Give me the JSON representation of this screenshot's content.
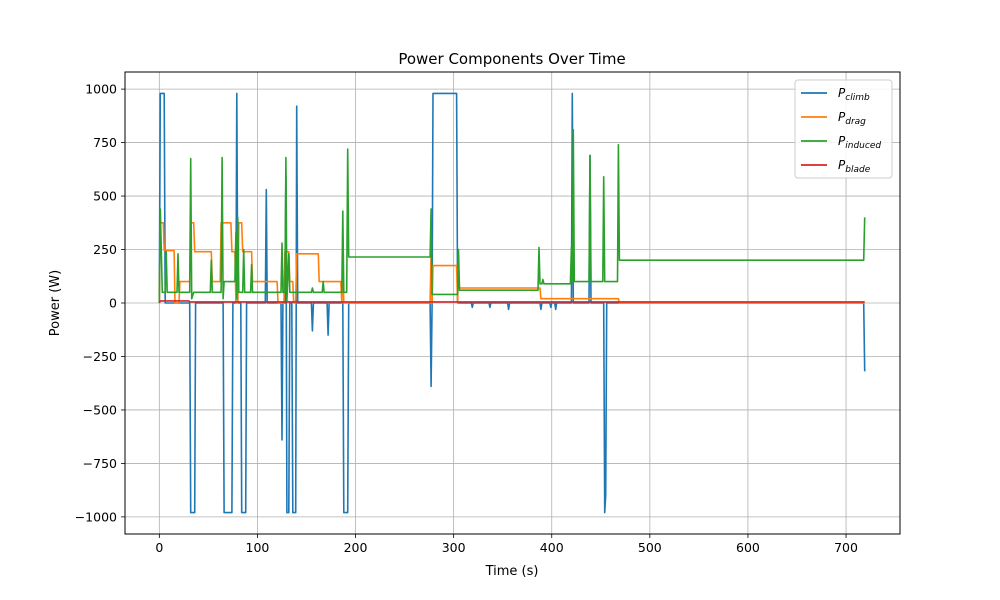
{
  "chart_data": {
    "type": "line",
    "title": "Power Components Over Time",
    "xlabel": "Time (s)",
    "ylabel": "Power (W)",
    "xlim": [
      -35,
      755
    ],
    "ylim": [
      -1080,
      1080
    ],
    "xticks": [
      0,
      100,
      200,
      300,
      400,
      500,
      600,
      700
    ],
    "yticks": [
      -1000,
      -750,
      -500,
      -250,
      0,
      250,
      500,
      750,
      1000
    ],
    "grid": true,
    "legend_position": "upper-right",
    "series": [
      {
        "name": "P_climb",
        "legend_main": "P",
        "legend_sub": "climb",
        "color": "#1f77b4",
        "points": [
          [
            0,
            0
          ],
          [
            1,
            980
          ],
          [
            3,
            980
          ],
          [
            5,
            980
          ],
          [
            6,
            0
          ],
          [
            31,
            0
          ],
          [
            32,
            -980
          ],
          [
            36,
            -980
          ],
          [
            37,
            0
          ],
          [
            65,
            0
          ],
          [
            66,
            -980
          ],
          [
            74,
            -980
          ],
          [
            75,
            0
          ],
          [
            78,
            0
          ],
          [
            79,
            980
          ],
          [
            80,
            0
          ],
          [
            83,
            0
          ],
          [
            84,
            -980
          ],
          [
            88,
            -980
          ],
          [
            89,
            0
          ],
          [
            108,
            0
          ],
          [
            109,
            530
          ],
          [
            110,
            0
          ],
          [
            124,
            0
          ],
          [
            125,
            -640
          ],
          [
            126,
            0
          ],
          [
            128,
            0
          ],
          [
            129,
            600
          ],
          [
            130,
            -980
          ],
          [
            132,
            -980
          ],
          [
            133,
            0
          ],
          [
            135,
            0
          ],
          [
            136,
            -980
          ],
          [
            139,
            -980
          ],
          [
            140,
            920
          ],
          [
            141,
            0
          ],
          [
            155,
            0
          ],
          [
            156,
            -130
          ],
          [
            157,
            0
          ],
          [
            171,
            0
          ],
          [
            172,
            -150
          ],
          [
            173,
            0
          ],
          [
            187,
            0
          ],
          [
            188,
            -980
          ],
          [
            192,
            -980
          ],
          [
            193,
            0
          ],
          [
            276,
            0
          ],
          [
            277,
            -390
          ],
          [
            278,
            0
          ],
          [
            279,
            980
          ],
          [
            303,
            980
          ],
          [
            304,
            0
          ],
          [
            318,
            0
          ],
          [
            319,
            -20
          ],
          [
            320,
            0
          ],
          [
            336,
            0
          ],
          [
            337,
            -20
          ],
          [
            338,
            0
          ],
          [
            355,
            0
          ],
          [
            356,
            -30
          ],
          [
            357,
            0
          ],
          [
            388,
            0
          ],
          [
            389,
            -30
          ],
          [
            390,
            0
          ],
          [
            398,
            0
          ],
          [
            399,
            -20
          ],
          [
            400,
            0
          ],
          [
            403,
            0
          ],
          [
            404,
            -30
          ],
          [
            405,
            0
          ],
          [
            420,
            0
          ],
          [
            421,
            980
          ],
          [
            422,
            0
          ],
          [
            438,
            0
          ],
          [
            439,
            690
          ],
          [
            440,
            0
          ],
          [
            453,
            0
          ],
          [
            454,
            -980
          ],
          [
            455,
            -900
          ],
          [
            456,
            0
          ],
          [
            718,
            0
          ],
          [
            719,
            -320
          ]
        ]
      },
      {
        "name": "P_drag",
        "legend_main": "P",
        "legend_sub": "drag",
        "color": "#ff7f0e",
        "points": [
          [
            0,
            0
          ],
          [
            1,
            375
          ],
          [
            4,
            375
          ],
          [
            5,
            245
          ],
          [
            15,
            245
          ],
          [
            16,
            0
          ],
          [
            20,
            0
          ],
          [
            21,
            100
          ],
          [
            31,
            100
          ],
          [
            32,
            375
          ],
          [
            35,
            375
          ],
          [
            36,
            240
          ],
          [
            53,
            240
          ],
          [
            54,
            100
          ],
          [
            62,
            100
          ],
          [
            63,
            375
          ],
          [
            73,
            375
          ],
          [
            74,
            240
          ],
          [
            77,
            240
          ],
          [
            78,
            0
          ],
          [
            80,
            0
          ],
          [
            81,
            375
          ],
          [
            84,
            375
          ],
          [
            85,
            240
          ],
          [
            94,
            240
          ],
          [
            95,
            100
          ],
          [
            120,
            100
          ],
          [
            121,
            0
          ],
          [
            127,
            0
          ],
          [
            128,
            240
          ],
          [
            132,
            240
          ],
          [
            133,
            100
          ],
          [
            136,
            100
          ],
          [
            137,
            0
          ],
          [
            139,
            0
          ],
          [
            140,
            230
          ],
          [
            162,
            230
          ],
          [
            163,
            100
          ],
          [
            185,
            100
          ],
          [
            186,
            0
          ],
          [
            187,
            200
          ],
          [
            188,
            0
          ],
          [
            276,
            0
          ],
          [
            277,
            240
          ],
          [
            278,
            0
          ],
          [
            279,
            175
          ],
          [
            303,
            175
          ],
          [
            304,
            0
          ],
          [
            305,
            175
          ],
          [
            306,
            70
          ],
          [
            388,
            70
          ],
          [
            389,
            20
          ],
          [
            468,
            20
          ],
          [
            469,
            0
          ],
          [
            719,
            0
          ]
        ]
      },
      {
        "name": "P_induced",
        "legend_main": "P",
        "legend_sub": "induced",
        "color": "#2ca02c",
        "points": [
          [
            0,
            0
          ],
          [
            1,
            440
          ],
          [
            3,
            50
          ],
          [
            6,
            50
          ],
          [
            7,
            240
          ],
          [
            8,
            50
          ],
          [
            18,
            50
          ],
          [
            19,
            230
          ],
          [
            20,
            50
          ],
          [
            31,
            50
          ],
          [
            32,
            675
          ],
          [
            33,
            20
          ],
          [
            35,
            50
          ],
          [
            52,
            50
          ],
          [
            53,
            200
          ],
          [
            54,
            50
          ],
          [
            63,
            50
          ],
          [
            64,
            680
          ],
          [
            65,
            20
          ],
          [
            66,
            100
          ],
          [
            77,
            100
          ],
          [
            78,
            330
          ],
          [
            79,
            20
          ],
          [
            80,
            400
          ],
          [
            81,
            50
          ],
          [
            85,
            50
          ],
          [
            86,
            250
          ],
          [
            87,
            50
          ],
          [
            93,
            50
          ],
          [
            94,
            180
          ],
          [
            95,
            50
          ],
          [
            124,
            50
          ],
          [
            125,
            280
          ],
          [
            126,
            50
          ],
          [
            128,
            50
          ],
          [
            129,
            680
          ],
          [
            130,
            10
          ],
          [
            132,
            230
          ],
          [
            133,
            50
          ],
          [
            155,
            50
          ],
          [
            156,
            70
          ],
          [
            157,
            50
          ],
          [
            166,
            50
          ],
          [
            167,
            100
          ],
          [
            168,
            50
          ],
          [
            186,
            50
          ],
          [
            187,
            430
          ],
          [
            188,
            50
          ],
          [
            191,
            50
          ],
          [
            192,
            720
          ],
          [
            193,
            215
          ],
          [
            276,
            215
          ],
          [
            277,
            440
          ],
          [
            278,
            40
          ],
          [
            279,
            40
          ],
          [
            303,
            40
          ],
          [
            304,
            40
          ],
          [
            305,
            250
          ],
          [
            306,
            60
          ],
          [
            386,
            60
          ],
          [
            387,
            260
          ],
          [
            388,
            90
          ],
          [
            390,
            90
          ],
          [
            391,
            110
          ],
          [
            392,
            90
          ],
          [
            419,
            90
          ],
          [
            420,
            260
          ],
          [
            421,
            100
          ],
          [
            422,
            810
          ],
          [
            423,
            100
          ],
          [
            438,
            100
          ],
          [
            439,
            690
          ],
          [
            440,
            100
          ],
          [
            452,
            100
          ],
          [
            453,
            590
          ],
          [
            454,
            100
          ],
          [
            467,
            100
          ],
          [
            468,
            740
          ],
          [
            469,
            200
          ],
          [
            718,
            200
          ],
          [
            719,
            400
          ]
        ]
      },
      {
        "name": "P_blade",
        "legend_main": "P",
        "legend_sub": "blade",
        "color": "#d62728",
        "points": [
          [
            0,
            0
          ],
          [
            1,
            10
          ],
          [
            30,
            10
          ],
          [
            31,
            5
          ],
          [
            719,
            5
          ]
        ]
      }
    ]
  }
}
